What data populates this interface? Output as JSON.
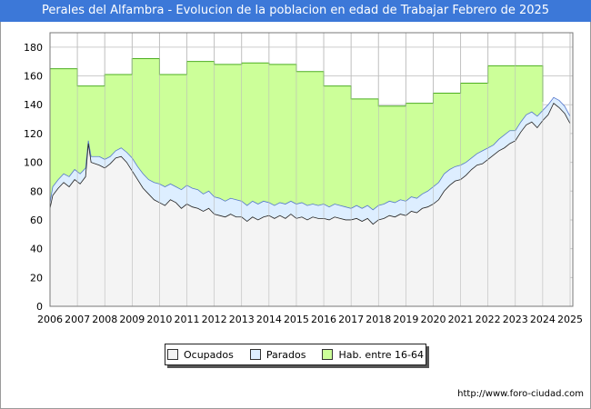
{
  "header": {
    "title": "Perales del Alfambra - Evolucion de la poblacion en edad de Trabajar Febrero de 2025"
  },
  "footer": {
    "url": "http://www.foro-ciudad.com"
  },
  "colors": {
    "hab": "#ccff99",
    "hab_line": "#4caf20",
    "parados": "#ddeeff",
    "parados_line": "#5577cc",
    "ocupados": "#f4f4f4",
    "ocupados_line": "#222222",
    "grid": "#cccccc",
    "title_bg": "#3c78d8"
  },
  "chart_data": {
    "type": "area",
    "title": "Perales del Alfambra - Evolucion de la poblacion en edad de Trabajar Febrero de 2025",
    "xlabel": "",
    "ylabel": "",
    "xlim": [
      2006,
      2025.1
    ],
    "ylim": [
      0,
      190
    ],
    "x_ticks": [
      "2006",
      "2007",
      "2008",
      "2009",
      "2010",
      "2011",
      "2012",
      "2013",
      "2014",
      "2015",
      "2016",
      "2017",
      "2018",
      "2019",
      "2020",
      "2021",
      "2022",
      "2023",
      "2024",
      "2025"
    ],
    "y_ticks": [
      0,
      20,
      40,
      60,
      80,
      100,
      120,
      140,
      160,
      180
    ],
    "grid": true,
    "legend": [
      "Ocupados",
      "Parados",
      "Hab. entre 16-64"
    ],
    "legend_position": "bottom-center",
    "series": [
      {
        "name": "Hab. entre 16-64",
        "step": true,
        "values": [
          {
            "year": 2006,
            "value": 165
          },
          {
            "year": 2007,
            "value": 153
          },
          {
            "year": 2008,
            "value": 161
          },
          {
            "year": 2009,
            "value": 172
          },
          {
            "year": 2010,
            "value": 161
          },
          {
            "year": 2011,
            "value": 170
          },
          {
            "year": 2012,
            "value": 168
          },
          {
            "year": 2013,
            "value": 169
          },
          {
            "year": 2014,
            "value": 168
          },
          {
            "year": 2015,
            "value": 163
          },
          {
            "year": 2016,
            "value": 153
          },
          {
            "year": 2017,
            "value": 144
          },
          {
            "year": 2018,
            "value": 139
          },
          {
            "year": 2019,
            "value": 141
          },
          {
            "year": 2020,
            "value": 148
          },
          {
            "year": 2021,
            "value": 155
          },
          {
            "year": 2022,
            "value": 167
          },
          {
            "year": 2023,
            "value": 167
          },
          {
            "year": 2024,
            "value": 142
          }
        ]
      },
      {
        "name": "Parados",
        "note": "total of ocupados + parados",
        "points": [
          [
            2006.0,
            72
          ],
          [
            2006.1,
            83
          ],
          [
            2006.3,
            88
          ],
          [
            2006.5,
            92
          ],
          [
            2006.7,
            90
          ],
          [
            2006.9,
            95
          ],
          [
            2007.1,
            92
          ],
          [
            2007.3,
            96
          ],
          [
            2007.4,
            115
          ],
          [
            2007.5,
            104
          ],
          [
            2007.8,
            104
          ],
          [
            2008.0,
            102
          ],
          [
            2008.2,
            104
          ],
          [
            2008.4,
            108
          ],
          [
            2008.6,
            110
          ],
          [
            2008.8,
            107
          ],
          [
            2009.0,
            103
          ],
          [
            2009.2,
            97
          ],
          [
            2009.4,
            92
          ],
          [
            2009.6,
            88
          ],
          [
            2009.8,
            86
          ],
          [
            2010.0,
            85
          ],
          [
            2010.2,
            83
          ],
          [
            2010.4,
            85
          ],
          [
            2010.6,
            83
          ],
          [
            2010.8,
            81
          ],
          [
            2011.0,
            84
          ],
          [
            2011.2,
            82
          ],
          [
            2011.4,
            81
          ],
          [
            2011.6,
            78
          ],
          [
            2011.8,
            80
          ],
          [
            2012.0,
            76
          ],
          [
            2012.2,
            75
          ],
          [
            2012.4,
            73
          ],
          [
            2012.6,
            75
          ],
          [
            2012.8,
            74
          ],
          [
            2013.0,
            73
          ],
          [
            2013.2,
            70
          ],
          [
            2013.4,
            73
          ],
          [
            2013.6,
            71
          ],
          [
            2013.8,
            73
          ],
          [
            2014.0,
            72
          ],
          [
            2014.2,
            70
          ],
          [
            2014.4,
            72
          ],
          [
            2014.6,
            71
          ],
          [
            2014.8,
            73
          ],
          [
            2015.0,
            71
          ],
          [
            2015.2,
            72
          ],
          [
            2015.4,
            70
          ],
          [
            2015.6,
            71
          ],
          [
            2015.8,
            70
          ],
          [
            2016.0,
            71
          ],
          [
            2016.2,
            69
          ],
          [
            2016.4,
            71
          ],
          [
            2016.6,
            70
          ],
          [
            2016.8,
            69
          ],
          [
            2017.0,
            68
          ],
          [
            2017.2,
            70
          ],
          [
            2017.4,
            68
          ],
          [
            2017.6,
            70
          ],
          [
            2017.8,
            67
          ],
          [
            2018.0,
            70
          ],
          [
            2018.2,
            71
          ],
          [
            2018.4,
            73
          ],
          [
            2018.6,
            72
          ],
          [
            2018.8,
            74
          ],
          [
            2019.0,
            73
          ],
          [
            2019.2,
            76
          ],
          [
            2019.4,
            75
          ],
          [
            2019.6,
            78
          ],
          [
            2019.8,
            80
          ],
          [
            2020.0,
            83
          ],
          [
            2020.2,
            86
          ],
          [
            2020.4,
            92
          ],
          [
            2020.6,
            95
          ],
          [
            2020.8,
            97
          ],
          [
            2021.0,
            98
          ],
          [
            2021.2,
            100
          ],
          [
            2021.4,
            103
          ],
          [
            2021.6,
            106
          ],
          [
            2021.8,
            108
          ],
          [
            2022.0,
            110
          ],
          [
            2022.2,
            112
          ],
          [
            2022.4,
            116
          ],
          [
            2022.6,
            119
          ],
          [
            2022.8,
            122
          ],
          [
            2023.0,
            122
          ],
          [
            2023.2,
            128
          ],
          [
            2023.4,
            133
          ],
          [
            2023.6,
            135
          ],
          [
            2023.8,
            132
          ],
          [
            2024.0,
            136
          ],
          [
            2024.2,
            140
          ],
          [
            2024.4,
            145
          ],
          [
            2024.6,
            143
          ],
          [
            2024.8,
            139
          ],
          [
            2025.0,
            132
          ]
        ]
      },
      {
        "name": "Ocupados",
        "points": [
          [
            2006.0,
            68
          ],
          [
            2006.1,
            77
          ],
          [
            2006.3,
            82
          ],
          [
            2006.5,
            86
          ],
          [
            2006.7,
            83
          ],
          [
            2006.9,
            88
          ],
          [
            2007.1,
            85
          ],
          [
            2007.3,
            90
          ],
          [
            2007.4,
            113
          ],
          [
            2007.5,
            100
          ],
          [
            2007.8,
            98
          ],
          [
            2008.0,
            96
          ],
          [
            2008.2,
            99
          ],
          [
            2008.4,
            103
          ],
          [
            2008.6,
            104
          ],
          [
            2008.8,
            100
          ],
          [
            2009.0,
            94
          ],
          [
            2009.2,
            88
          ],
          [
            2009.4,
            82
          ],
          [
            2009.6,
            78
          ],
          [
            2009.8,
            74
          ],
          [
            2010.0,
            72
          ],
          [
            2010.2,
            70
          ],
          [
            2010.4,
            74
          ],
          [
            2010.6,
            72
          ],
          [
            2010.8,
            68
          ],
          [
            2011.0,
            71
          ],
          [
            2011.2,
            69
          ],
          [
            2011.4,
            68
          ],
          [
            2011.6,
            66
          ],
          [
            2011.8,
            68
          ],
          [
            2012.0,
            64
          ],
          [
            2012.2,
            63
          ],
          [
            2012.4,
            62
          ],
          [
            2012.6,
            64
          ],
          [
            2012.8,
            62
          ],
          [
            2013.0,
            62
          ],
          [
            2013.2,
            59
          ],
          [
            2013.4,
            62
          ],
          [
            2013.6,
            60
          ],
          [
            2013.8,
            62
          ],
          [
            2014.0,
            63
          ],
          [
            2014.2,
            61
          ],
          [
            2014.4,
            63
          ],
          [
            2014.6,
            61
          ],
          [
            2014.8,
            64
          ],
          [
            2015.0,
            61
          ],
          [
            2015.2,
            62
          ],
          [
            2015.4,
            60
          ],
          [
            2015.6,
            62
          ],
          [
            2015.8,
            61
          ],
          [
            2016.0,
            61
          ],
          [
            2016.2,
            60
          ],
          [
            2016.4,
            62
          ],
          [
            2016.6,
            61
          ],
          [
            2016.8,
            60
          ],
          [
            2017.0,
            60
          ],
          [
            2017.2,
            61
          ],
          [
            2017.4,
            59
          ],
          [
            2017.6,
            61
          ],
          [
            2017.8,
            57
          ],
          [
            2018.0,
            60
          ],
          [
            2018.2,
            61
          ],
          [
            2018.4,
            63
          ],
          [
            2018.6,
            62
          ],
          [
            2018.8,
            64
          ],
          [
            2019.0,
            63
          ],
          [
            2019.2,
            66
          ],
          [
            2019.4,
            65
          ],
          [
            2019.6,
            68
          ],
          [
            2019.8,
            69
          ],
          [
            2020.0,
            71
          ],
          [
            2020.2,
            74
          ],
          [
            2020.4,
            80
          ],
          [
            2020.6,
            84
          ],
          [
            2020.8,
            87
          ],
          [
            2021.0,
            88
          ],
          [
            2021.2,
            91
          ],
          [
            2021.4,
            95
          ],
          [
            2021.6,
            98
          ],
          [
            2021.8,
            99
          ],
          [
            2022.0,
            102
          ],
          [
            2022.2,
            105
          ],
          [
            2022.4,
            108
          ],
          [
            2022.6,
            110
          ],
          [
            2022.8,
            113
          ],
          [
            2023.0,
            115
          ],
          [
            2023.2,
            121
          ],
          [
            2023.4,
            126
          ],
          [
            2023.6,
            128
          ],
          [
            2023.8,
            124
          ],
          [
            2024.0,
            129
          ],
          [
            2024.2,
            133
          ],
          [
            2024.4,
            141
          ],
          [
            2024.6,
            138
          ],
          [
            2024.8,
            134
          ],
          [
            2025.0,
            127
          ]
        ]
      }
    ]
  }
}
